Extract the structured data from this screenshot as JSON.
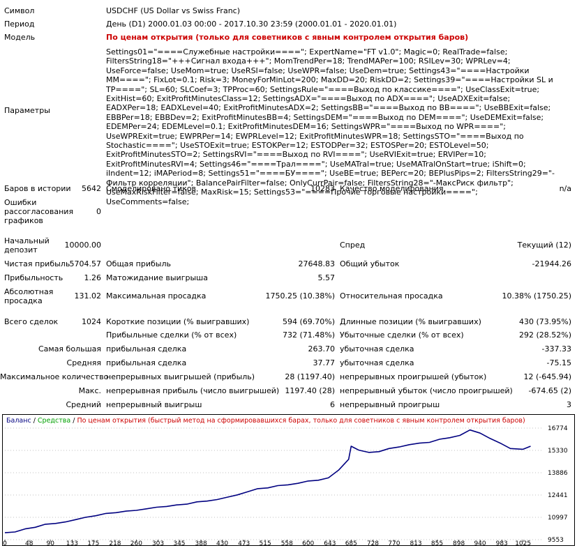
{
  "header": {
    "symbol_label": "Символ",
    "symbol_value": "USDCHF (US Dollar vs Swiss Franc)",
    "period_label": "Период",
    "period_value": "День (D1) 2000.01.03 00:00 - 2017.10.30 23:59 (2000.01.01 - 2020.01.01)",
    "model_label": "Модель",
    "model_value": "По ценам открытия (только для советников с явным контролем открытия баров)",
    "params_label": "Параметры",
    "params_value": "Settings01=\"====Служебные настройки====\"; ExpertName=\"FT v1.0\"; Magic=0; RealTrade=false; FiltersString18=\"+++Сигнал входа+++\"; MomTrendPer=18; TrendMAPer=100; RSILev=30; WPRLev=4; UseForce=false; UseMom=true; UseRSI=false; UseWPR=false; UseDem=true; Settings43=\"====Настройки MM====\"; FixLot=0.1; Risk=3; MoneyForMinLot=200; MaxDD=20; RiskDD=2; Settings39=\"====Настройки SL и TP====\"; SL=60; SLCoef=3; TPProc=60; SettingsRule=\"====Выход по классике====\"; UseClassExit=true; ExitHist=60; ExitProfitMinutesClass=12; SettingsADX=\"====Выход по ADX====\"; UseADXExit=false; EADXPer=18; EADXLevel=40; ExitProfitMinutesADX=2; SettingsBB=\"====Выход по BB====\"; UseBBExit=false; EBBPer=18; EBBDev=2; ExitProfitMinutesBB=4; SettingsDEM=\"====Выход по DEM====\"; UseDEMExit=false; EDEMPer=24; EDEMLevel=0.1; ExitProfitMinutesDEM=16; SettingsWPR=\"====Выход по WPR====\"; UseWPRExit=true; EWPRPer=14; EWPRLevel=12; ExitProfitMinutesWPR=18; SettingsSTO=\"====Выход по Stochastic====\"; UseSTOExit=true; ESTOKPer=12; ESTODPer=32; ESTOSPer=20; ESTOLevel=50; ExitProfitMinutesSTO=2; SettingsRVI=\"====Выход по RVI====\"; UseRVIExit=true; ERVIPer=10; ExitProfitMinutesRVI=4; Settings46=\"====Трал====\"; UseMATral=true; UseMATralOnStart=true; iShift=0; iIndent=12; iMAPeriod=8; Settings51=\"====БУ====\"; UseBE=true; BEPerc=20; BEPlusPips=2; FiltersString29=\"-Фильтр корреляции\"; BalancePairFilter=false; OnlyCurrPair=false; FiltersString28=\"-МаксРиск фильтр\"; UseMaxRiskFilter=false; MaxRisk=15; Settings53=\"====Прочие торговые настройки====\"; UseComments=false;"
  },
  "stats": {
    "bars_label": "Баров в истории",
    "bars_value": "5642",
    "ticks_label": "Смоделировано тиков",
    "ticks_value": "10283",
    "quality_label": "Качество моделирования",
    "quality_value": "n/a",
    "errors_label_1": "Ошибки",
    "errors_label_2": "рассогласования",
    "errors_label_3": "графиков",
    "errors_value": "0",
    "deposit_label_1": "Начальный",
    "deposit_label_2": "депозит",
    "deposit_value": "10000.00",
    "spread_label": "Спред",
    "spread_value": "Текущий (12)",
    "net_label": "Чистая прибыль",
    "net_value": "5704.57",
    "gross_profit_label": "Общая прибыль",
    "gross_profit_value": "27648.83",
    "gross_loss_label": "Общий убыток",
    "gross_loss_value": "-21944.26",
    "pf_label": "Прибыльность",
    "pf_value": "1.26",
    "payoff_label": "Матожидание выигрыша",
    "payoff_value": "5.57",
    "abs_dd_label_1": "Абсолютная",
    "abs_dd_label_2": "просадка",
    "abs_dd_value": "131.02",
    "max_dd_label": "Максимальная просадка",
    "max_dd_value": "1750.25 (10.38%)",
    "rel_dd_label": "Относительная просадка",
    "rel_dd_value": "10.38% (1750.25)",
    "trades_label": "Всего сделок",
    "trades_value": "1024",
    "short_label": "Короткие позиции (% выигравших)",
    "short_value": "594 (69.70%)",
    "long_label": "Длинные позиции (% выигравших)",
    "long_value": "430 (73.95%)",
    "profit_trades_label": "Прибыльные сделки (% от всех)",
    "profit_trades_value": "732 (71.48%)",
    "loss_trades_label": "Убыточные сделки (% от всех)",
    "loss_trades_value": "292 (28.52%)",
    "largest_label": "Самая большая",
    "largest_profit_label": "прибыльная сделка",
    "largest_profit_value": "263.70",
    "largest_loss_label": "убыточная сделка",
    "largest_loss_value": "-337.33",
    "avg_label": "Средняя",
    "avg_profit_label": "прибыльная сделка",
    "avg_profit_value": "37.77",
    "avg_loss_label": "убыточная сделка",
    "avg_loss_value": "-75.15",
    "maxcount_label": "Максимальное количество",
    "maxcount_wins_label": "непрерывных выигрышей (прибыль)",
    "maxcount_wins_value": "28 (1197.40)",
    "maxcount_losses_label": "непрерывных проигрышей (убыток)",
    "maxcount_losses_value": "12 (-645.94)",
    "max_label": "Макс.",
    "max_profit_label": "непрерывная прибыль (число выигрышей)",
    "max_profit_value": "1197.40 (28)",
    "max_loss_label": "непрерывный убыток (число проигрышей)",
    "max_loss_value": "-674.65 (2)",
    "avgc_label": "Средний",
    "avgc_win_label": "непрерывный выигрыш",
    "avgc_win_value": "6",
    "avgc_loss_label": "непрерывный проигрыш",
    "avgc_loss_value": "3"
  },
  "chart_data": {
    "type": "line",
    "legend": {
      "balance": "Баланс",
      "sep1": " / ",
      "equity": "Средства",
      "sep2": " / ",
      "model": "По ценам открытия (быстрый метод на сформировавшихся барах, только для советников с явным контролем открытия баров)"
    },
    "colors": {
      "balance": "#000080",
      "equity": "#00a000",
      "model": "#cc0000",
      "grid": "#808080"
    },
    "x_ticks": [
      "0",
      "48",
      "90",
      "133",
      "175",
      "218",
      "260",
      "303",
      "345",
      "388",
      "430",
      "473",
      "515",
      "558",
      "600",
      "643",
      "685",
      "728",
      "770",
      "813",
      "855",
      "898",
      "940",
      "983",
      "1025"
    ],
    "y_ticks": [
      "16774",
      "15330",
      "13886",
      "12441",
      "10997",
      "9553"
    ],
    "ylim": [
      9553,
      16774
    ],
    "xlim": [
      0,
      1060
    ],
    "series": [
      {
        "name": "Баланс",
        "x": [
          0,
          20,
          40,
          60,
          80,
          100,
          120,
          140,
          160,
          180,
          200,
          220,
          240,
          260,
          280,
          300,
          320,
          340,
          360,
          380,
          400,
          420,
          440,
          460,
          480,
          500,
          520,
          540,
          560,
          580,
          600,
          620,
          640,
          660,
          680,
          685,
          700,
          720,
          740,
          760,
          780,
          800,
          820,
          840,
          860,
          880,
          900,
          920,
          940,
          960,
          980,
          1000,
          1025,
          1040
        ],
        "y": [
          10000,
          10050,
          10250,
          10350,
          10550,
          10600,
          10700,
          10850,
          11000,
          11100,
          11250,
          11300,
          11400,
          11450,
          11550,
          11650,
          11700,
          11800,
          11850,
          12000,
          12050,
          12150,
          12300,
          12450,
          12650,
          12850,
          12900,
          13050,
          13100,
          13200,
          13350,
          13400,
          13550,
          14050,
          14750,
          15600,
          15350,
          15200,
          15250,
          15450,
          15550,
          15700,
          15800,
          15850,
          16050,
          16150,
          16300,
          16650,
          16450,
          16100,
          15800,
          15450,
          15400,
          15600
        ]
      }
    ]
  }
}
